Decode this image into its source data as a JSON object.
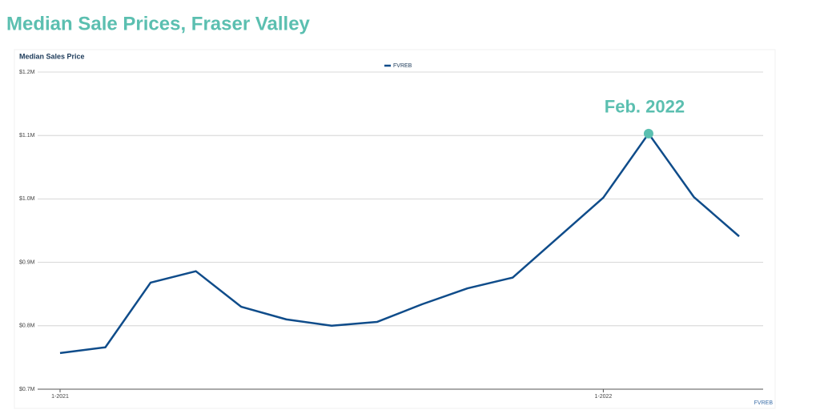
{
  "chart_data": {
    "type": "line",
    "page_title": "Median Sale Prices, Fraser Valley",
    "title": "Median Sales Price",
    "source": "FVREB",
    "annotation": "Feb. 2022",
    "categories": [
      "1-2021",
      null,
      null,
      null,
      null,
      null,
      null,
      null,
      null,
      null,
      null,
      null,
      "1-2022",
      null,
      null,
      null
    ],
    "series": [
      {
        "name": "FVREB",
        "color": "#0f4c8a",
        "values": [
          0.757,
          0.766,
          0.868,
          0.886,
          0.83,
          0.81,
          0.8,
          0.806,
          0.834,
          0.859,
          0.876,
          0.939,
          1.002,
          1.103,
          1.003,
          0.941
        ]
      }
    ],
    "annotation_color": "#5bbfb0",
    "ylim": [
      0.7,
      1.2
    ],
    "yticks": [
      {
        "value": 0.7,
        "label": "$0.7M"
      },
      {
        "value": 0.8,
        "label": "$0.8M"
      },
      {
        "value": 0.9,
        "label": "$0.9M"
      },
      {
        "value": 1.0,
        "label": "$1.0M"
      },
      {
        "value": 1.1,
        "label": "$1.1M"
      },
      {
        "value": 1.2,
        "label": "$1.2M"
      }
    ],
    "grid": true
  }
}
